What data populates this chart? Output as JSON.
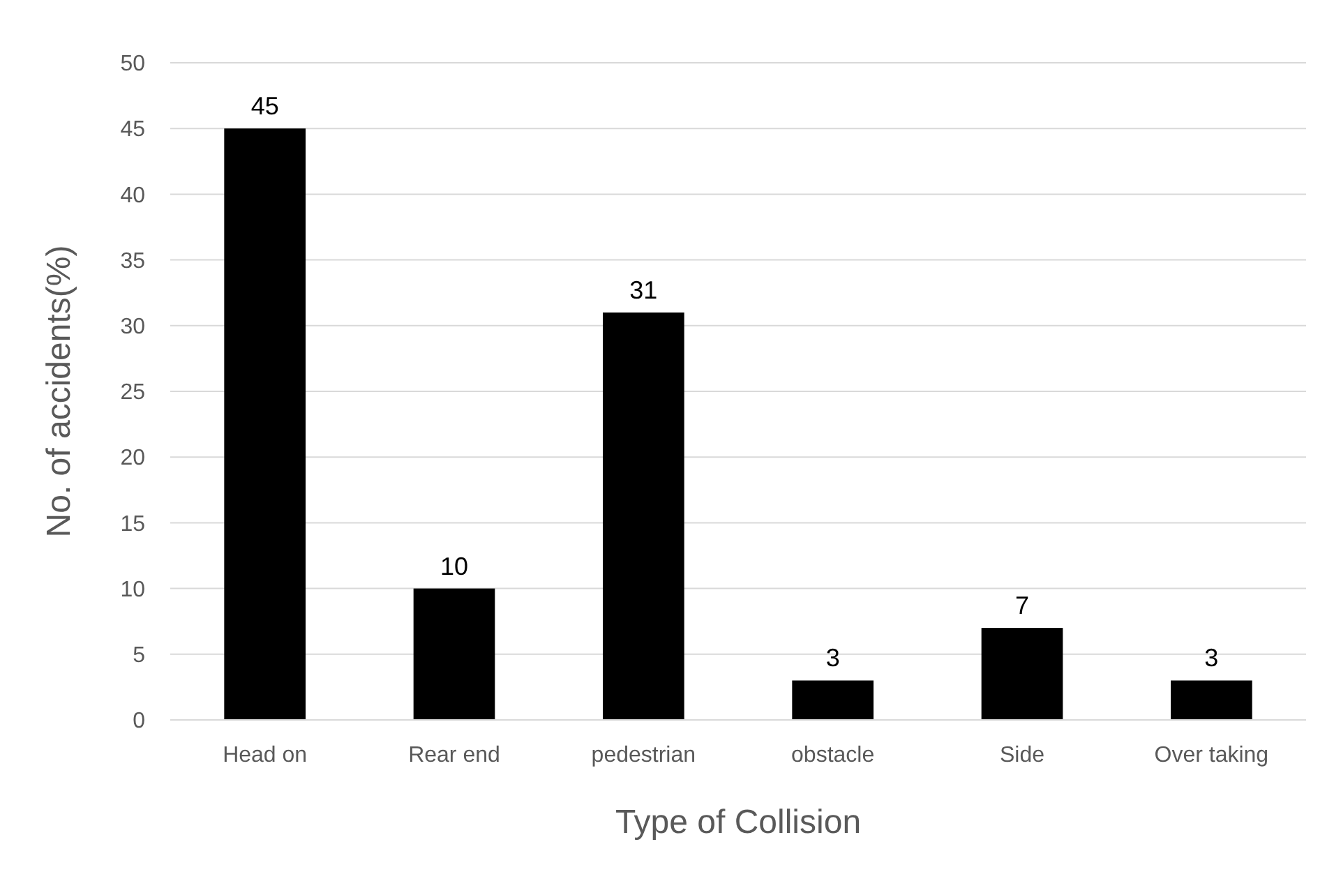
{
  "chart_data": {
    "type": "bar",
    "xlabel": "Type of Collision",
    "ylabel": "No. of accidents(%)",
    "categories": [
      "Head on",
      "Rear end",
      "pedestrian",
      "obstacle",
      "Side",
      "Over taking"
    ],
    "values": [
      45,
      10,
      31,
      3,
      7,
      3
    ],
    "color": "#000000",
    "ylim": [
      0,
      50
    ],
    "yticks": [
      0,
      5,
      10,
      15,
      20,
      25,
      30,
      35,
      40,
      45,
      50
    ],
    "grid": "y",
    "data_labels": true
  }
}
